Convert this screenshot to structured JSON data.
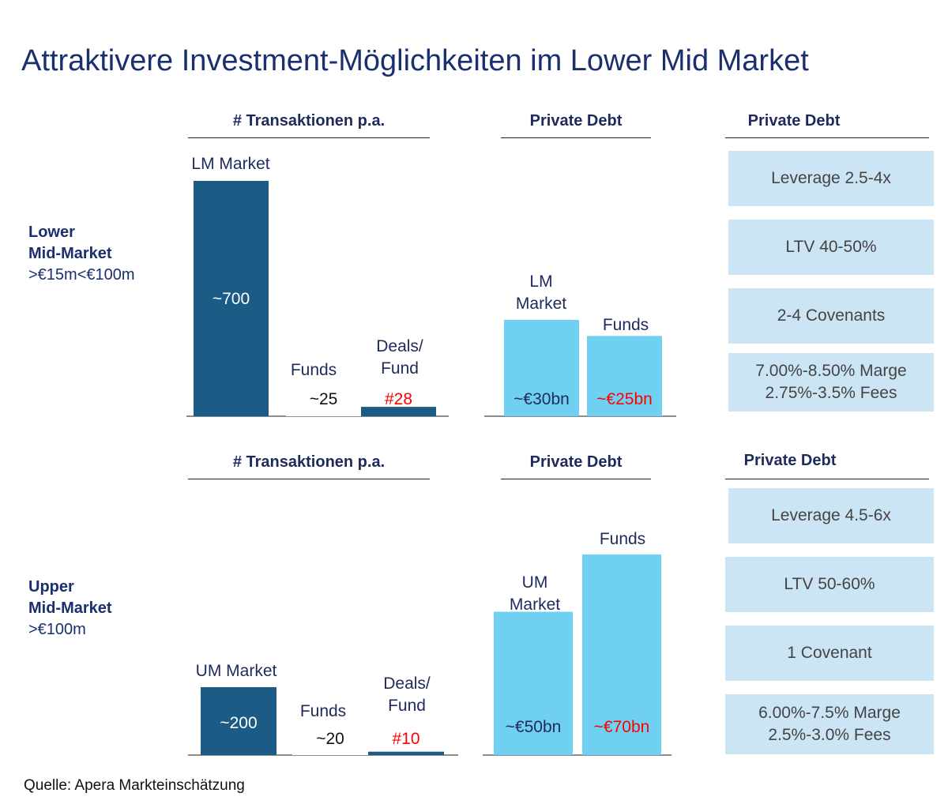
{
  "title": "Attraktivere Investment-Möglichkeiten im Lower Mid Market",
  "source": "Quelle: Apera Markteinschätzung",
  "colors": {
    "dark_bar": "#1b5b85",
    "light_bar": "#6fd0f1",
    "box_bg": "#cce5f4",
    "highlight": "#ff0000",
    "navy": "#1f2a5c"
  },
  "sections": [
    {
      "label_bold": [
        "Lower",
        "Mid-Market"
      ],
      "label_normal": ">€15m<€100m",
      "transactions_header": "# Transaktionen p.a.",
      "debt_header": "Private Debt",
      "terms_header": "Private Debt",
      "terms": [
        "Leverage 2.5-4x",
        "LTV 40-50%",
        "2-4 Covenants",
        "7.00%-8.50% Marge\n 2.75%-3.5% Fees"
      ]
    },
    {
      "label_bold": [
        "Upper",
        "Mid-Market"
      ],
      "label_normal": ">€100m",
      "transactions_header": "# Transaktionen p.a.",
      "debt_header": "Private Debt",
      "terms_header": "Private Debt",
      "terms": [
        "Leverage 4.5-6x",
        "LTV 50-60%",
        "1 Covenant",
        "6.00%-7.5% Marge\n 2.5%-3.0% Fees"
      ]
    }
  ],
  "chart_data": [
    {
      "type": "bar",
      "title": "# Transaktionen p.a.",
      "categories": [
        "LM Market",
        "Funds",
        "Deals/ Fund"
      ],
      "values": [
        700,
        25,
        28
      ],
      "value_labels": [
        "~700",
        "~25",
        "#28"
      ],
      "highlight": [
        false,
        false,
        true
      ]
    },
    {
      "type": "bar",
      "title": "Private Debt",
      "categories": [
        "LM Market",
        "Funds"
      ],
      "values": [
        30,
        25
      ],
      "value_labels": [
        "~€30bn",
        "~€25bn"
      ],
      "highlight": [
        false,
        true
      ]
    },
    {
      "type": "bar",
      "title": "# Transaktionen p.a.",
      "categories": [
        "UM Market",
        "Funds",
        "Deals/ Fund"
      ],
      "values": [
        200,
        20,
        10
      ],
      "value_labels": [
        "~200",
        "~20",
        "#10"
      ],
      "highlight": [
        false,
        false,
        true
      ]
    },
    {
      "type": "bar",
      "title": "Private Debt",
      "categories": [
        "UM Market",
        "Funds"
      ],
      "values": [
        50,
        70
      ],
      "value_labels": [
        "~€50bn",
        "~€70bn"
      ],
      "highlight": [
        false,
        true
      ]
    }
  ]
}
